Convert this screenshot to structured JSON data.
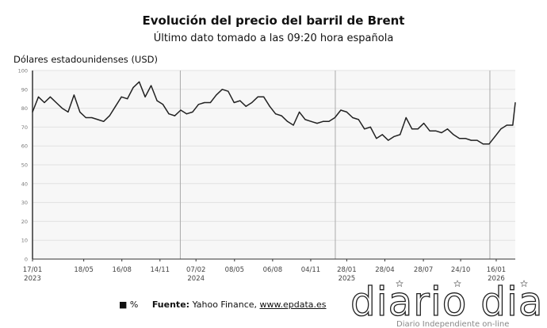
{
  "chart_data": {
    "type": "line",
    "title": "Evolución del precio del barril de Brent",
    "subtitle": "Último dato tomado a las 09:20 hora española",
    "ylabel": "Dólares estadounidenses (USD)",
    "xlabel": "",
    "ylim": [
      0,
      100
    ],
    "yticks": [
      0,
      10,
      20,
      30,
      40,
      50,
      60,
      70,
      80,
      90,
      100
    ],
    "xlim": [
      "2023-01-17",
      "2026-03-02"
    ],
    "xticks": [
      {
        "date": "2023-01-17",
        "label": "17/01",
        "year": "2023"
      },
      {
        "date": "2023-05-18",
        "label": "18/05",
        "year": ""
      },
      {
        "date": "2023-08-16",
        "label": "16/08",
        "year": ""
      },
      {
        "date": "2023-11-14",
        "label": "14/11",
        "year": ""
      },
      {
        "date": "2024-02-07",
        "label": "07/02",
        "year": "2024"
      },
      {
        "date": "2024-05-08",
        "label": "08/05",
        "year": ""
      },
      {
        "date": "2024-08-06",
        "label": "06/08",
        "year": ""
      },
      {
        "date": "2024-11-04",
        "label": "04/11",
        "year": ""
      },
      {
        "date": "2025-01-28",
        "label": "28/01",
        "year": "2025"
      },
      {
        "date": "2025-04-28",
        "label": "28/04",
        "year": ""
      },
      {
        "date": "2025-07-28",
        "label": "28/07",
        "year": ""
      },
      {
        "date": "2025-10-24",
        "label": "24/10",
        "year": ""
      },
      {
        "date": "2026-01-16",
        "label": "16/01",
        "year": "2026"
      }
    ],
    "year_lines": [
      "2024-01-01",
      "2025-01-01",
      "2026-01-01"
    ],
    "grid": true,
    "line_color": "#222222",
    "plot_background": "#f7f7f7",
    "x": [
      "2023-01-17",
      "2023-01-31",
      "2023-02-14",
      "2023-02-28",
      "2023-03-14",
      "2023-03-28",
      "2023-04-11",
      "2023-04-25",
      "2023-05-09",
      "2023-05-23",
      "2023-06-06",
      "2023-06-20",
      "2023-07-04",
      "2023-07-18",
      "2023-08-01",
      "2023-08-15",
      "2023-08-29",
      "2023-09-12",
      "2023-09-26",
      "2023-10-10",
      "2023-10-24",
      "2023-11-07",
      "2023-11-21",
      "2023-12-05",
      "2023-12-19",
      "2024-01-02",
      "2024-01-16",
      "2024-01-30",
      "2024-02-13",
      "2024-02-27",
      "2024-03-12",
      "2024-03-26",
      "2024-04-09",
      "2024-04-23",
      "2024-05-07",
      "2024-05-21",
      "2024-06-04",
      "2024-06-18",
      "2024-07-02",
      "2024-07-16",
      "2024-07-30",
      "2024-08-13",
      "2024-08-27",
      "2024-09-10",
      "2024-09-24",
      "2024-10-08",
      "2024-10-22",
      "2024-11-05",
      "2024-11-19",
      "2024-12-03",
      "2024-12-17",
      "2024-12-31",
      "2025-01-14",
      "2025-01-28",
      "2025-02-11",
      "2025-02-25",
      "2025-03-11",
      "2025-03-25",
      "2025-04-08",
      "2025-04-22",
      "2025-05-06",
      "2025-05-20",
      "2025-06-03",
      "2025-06-17",
      "2025-07-01",
      "2025-07-15",
      "2025-07-29",
      "2025-08-12",
      "2025-08-26",
      "2025-09-09",
      "2025-09-23",
      "2025-10-07",
      "2025-10-21",
      "2025-11-04",
      "2025-11-18",
      "2025-12-02",
      "2025-12-16",
      "2025-12-30",
      "2026-01-13",
      "2026-01-27",
      "2026-02-10",
      "2026-02-24",
      "2026-03-02"
    ],
    "series": [
      {
        "values": [
          78,
          86,
          83,
          86,
          83,
          80,
          78,
          87,
          78,
          75,
          75,
          74,
          73,
          76,
          81,
          86,
          85,
          91,
          94,
          86,
          92,
          84,
          82,
          77,
          76,
          79,
          77,
          78,
          82,
          83,
          83,
          87,
          90,
          89,
          83,
          84,
          81,
          83,
          86,
          86,
          81,
          77,
          76,
          73,
          71,
          78,
          74,
          73,
          72,
          73,
          73,
          75,
          79,
          78,
          75,
          74,
          69,
          70,
          64,
          66,
          63,
          65,
          66,
          75,
          69,
          69,
          72,
          68,
          68,
          67,
          69,
          66,
          64,
          64,
          63,
          63,
          61,
          61,
          65,
          69,
          71,
          71,
          83
        ]
      }
    ],
    "legend": {
      "marker": "■",
      "label": "%"
    }
  },
  "footer": {
    "source_label": "Fuente:",
    "source_text": "Yahoo Finance, ",
    "source_link": "www.epdata.es"
  },
  "logo": {
    "text": "diario dia",
    "tagline": "Diario Independiente on-line"
  }
}
